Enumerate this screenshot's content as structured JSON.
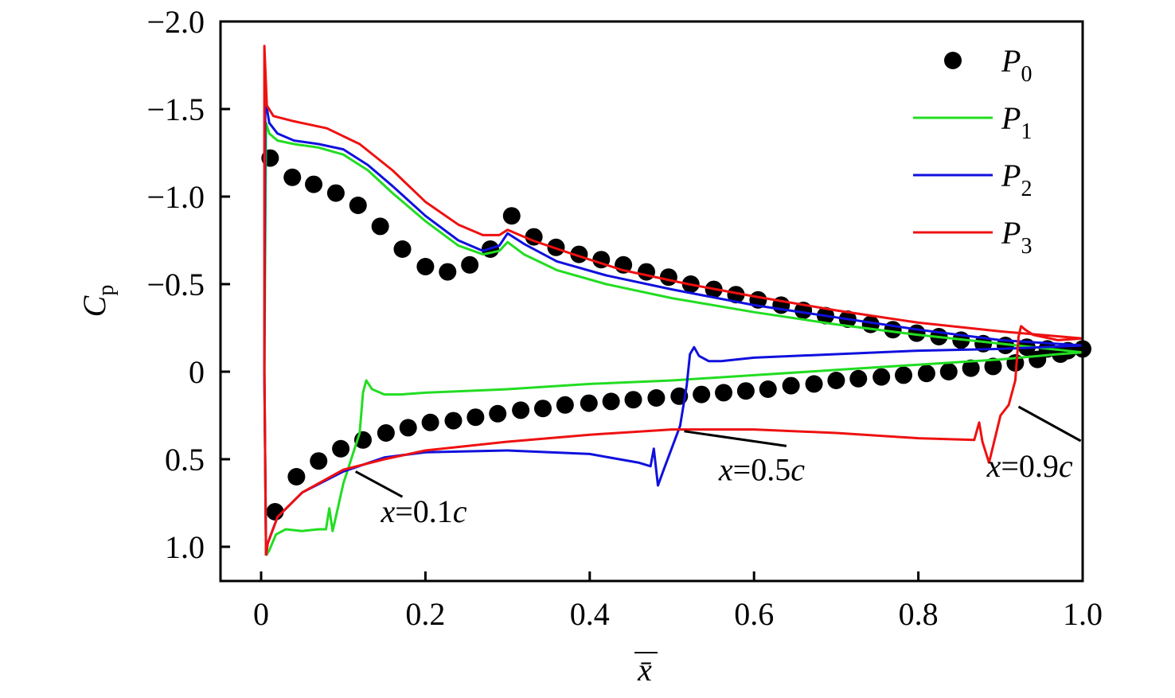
{
  "chart_data": {
    "type": "line",
    "title": "",
    "xlabel": "x̄",
    "ylabel": {
      "main": "C",
      "sub": "p"
    },
    "xlim": [
      0,
      1.0
    ],
    "ylim": [
      -2.0,
      1.2
    ],
    "y_inverted": true,
    "grid": false,
    "legend_position": "top-right",
    "x_ticks": [
      0,
      0.2,
      0.4,
      0.6,
      0.8,
      1.0
    ],
    "x_tick_labels": [
      "0",
      "0.2",
      "0.4",
      "0.6",
      "0.8",
      "1.0"
    ],
    "y_ticks": [
      -2.0,
      -1.5,
      -1.0,
      -0.5,
      0,
      0.5,
      1.0
    ],
    "y_tick_labels": [
      "−2.0",
      "−1.5",
      "−1.0",
      "−0.5",
      "0",
      "0.5",
      "1.0"
    ],
    "series": [
      {
        "name": "P0",
        "label_main": "P",
        "label_sub": "0",
        "type": "scatter",
        "color": "#000000",
        "x": [
          0.011,
          0.038,
          0.064,
          0.091,
          0.118,
          0.145,
          0.172,
          0.2,
          0.227,
          0.254,
          0.279,
          0.305,
          0.332,
          0.359,
          0.387,
          0.414,
          0.441,
          0.469,
          0.496,
          0.523,
          0.551,
          0.578,
          0.605,
          0.633,
          0.66,
          0.687,
          0.714,
          0.742,
          0.769,
          0.798,
          0.825,
          0.852,
          0.879,
          0.906,
          0.932,
          0.957,
          0.982,
          1.0,
          0.017,
          0.043,
          0.07,
          0.097,
          0.124,
          0.152,
          0.179,
          0.206,
          0.234,
          0.261,
          0.288,
          0.316,
          0.343,
          0.37,
          0.399,
          0.426,
          0.453,
          0.481,
          0.509,
          0.536,
          0.563,
          0.59,
          0.617,
          0.645,
          0.673,
          0.7,
          0.727,
          0.755,
          0.782,
          0.81,
          0.837,
          0.864,
          0.891,
          0.918,
          0.945,
          0.973
        ],
        "y": [
          -1.22,
          -1.11,
          -1.07,
          -1.02,
          -0.95,
          -0.83,
          -0.7,
          -0.6,
          -0.57,
          -0.61,
          -0.7,
          -0.89,
          -0.77,
          -0.71,
          -0.67,
          -0.64,
          -0.61,
          -0.57,
          -0.54,
          -0.5,
          -0.47,
          -0.44,
          -0.41,
          -0.38,
          -0.35,
          -0.32,
          -0.3,
          -0.27,
          -0.24,
          -0.22,
          -0.2,
          -0.18,
          -0.16,
          -0.15,
          -0.14,
          -0.13,
          -0.12,
          -0.13,
          0.8,
          0.6,
          0.51,
          0.44,
          0.39,
          0.35,
          0.32,
          0.29,
          0.28,
          0.26,
          0.24,
          0.22,
          0.21,
          0.19,
          0.18,
          0.17,
          0.16,
          0.15,
          0.14,
          0.13,
          0.12,
          0.11,
          0.1,
          0.08,
          0.07,
          0.05,
          0.04,
          0.03,
          0.02,
          0.01,
          0.0,
          -0.02,
          -0.03,
          -0.05,
          -0.07,
          -0.1
        ]
      },
      {
        "name": "P1",
        "label_main": "P",
        "label_sub": "1",
        "type": "line",
        "color": "#22dd22",
        "x": [
          0.006,
          0.004,
          0.006,
          0.01,
          0.02,
          0.04,
          0.07,
          0.1,
          0.13,
          0.16,
          0.2,
          0.24,
          0.27,
          0.29,
          0.3,
          0.32,
          0.36,
          0.42,
          0.5,
          0.6,
          0.7,
          0.8,
          0.9,
          1.0,
          0.97,
          0.9,
          0.8,
          0.7,
          0.6,
          0.5,
          0.4,
          0.3,
          0.2,
          0.17,
          0.15,
          0.135,
          0.128,
          0.124,
          0.12,
          0.1,
          0.09,
          0.087,
          0.083,
          0.079,
          0.07,
          0.05,
          0.03,
          0.018,
          0.01,
          0.006
        ],
        "y": [
          1.05,
          0.0,
          -1.42,
          -1.36,
          -1.32,
          -1.3,
          -1.28,
          -1.24,
          -1.15,
          -1.02,
          -0.86,
          -0.72,
          -0.67,
          -0.69,
          -0.74,
          -0.67,
          -0.58,
          -0.5,
          -0.42,
          -0.34,
          -0.27,
          -0.21,
          -0.16,
          -0.11,
          -0.1,
          -0.07,
          -0.04,
          -0.01,
          0.02,
          0.05,
          0.07,
          0.1,
          0.12,
          0.13,
          0.13,
          0.1,
          0.05,
          0.12,
          0.35,
          0.64,
          0.85,
          0.91,
          0.78,
          0.9,
          0.9,
          0.91,
          0.9,
          0.93,
          1.02,
          1.05
        ]
      },
      {
        "name": "P2",
        "label_main": "P",
        "label_sub": "2",
        "type": "line",
        "color": "#1010dd",
        "x": [
          0.006,
          0.004,
          0.005,
          0.01,
          0.02,
          0.04,
          0.07,
          0.1,
          0.13,
          0.16,
          0.2,
          0.24,
          0.27,
          0.29,
          0.3,
          0.32,
          0.36,
          0.42,
          0.5,
          0.6,
          0.7,
          0.8,
          0.9,
          1.0,
          0.95,
          0.9,
          0.8,
          0.7,
          0.6,
          0.56,
          0.545,
          0.533,
          0.527,
          0.522,
          0.518,
          0.51,
          0.49,
          0.483,
          0.478,
          0.474,
          0.46,
          0.4,
          0.3,
          0.2,
          0.15,
          0.1,
          0.05,
          0.02,
          0.008,
          0.006
        ],
        "y": [
          1.05,
          0.0,
          -1.56,
          -1.42,
          -1.36,
          -1.32,
          -1.3,
          -1.27,
          -1.18,
          -1.06,
          -0.89,
          -0.75,
          -0.69,
          -0.72,
          -0.79,
          -0.73,
          -0.63,
          -0.55,
          -0.47,
          -0.38,
          -0.31,
          -0.24,
          -0.18,
          -0.15,
          -0.14,
          -0.13,
          -0.12,
          -0.1,
          -0.08,
          -0.06,
          -0.06,
          -0.09,
          -0.14,
          -0.1,
          0.08,
          0.31,
          0.56,
          0.65,
          0.44,
          0.54,
          0.52,
          0.47,
          0.45,
          0.46,
          0.49,
          0.57,
          0.69,
          0.83,
          0.98,
          1.05
        ]
      },
      {
        "name": "P3",
        "label_main": "P",
        "label_sub": "3",
        "type": "line",
        "color": "#ee1111",
        "x": [
          0.006,
          0.004,
          0.004,
          0.007,
          0.015,
          0.04,
          0.08,
          0.12,
          0.16,
          0.2,
          0.24,
          0.27,
          0.29,
          0.3,
          0.33,
          0.38,
          0.44,
          0.52,
          0.6,
          0.7,
          0.8,
          0.9,
          1.0,
          0.97,
          0.94,
          0.93,
          0.925,
          0.922,
          0.918,
          0.91,
          0.9,
          0.886,
          0.878,
          0.874,
          0.868,
          0.8,
          0.7,
          0.6,
          0.5,
          0.4,
          0.3,
          0.2,
          0.15,
          0.1,
          0.05,
          0.02,
          0.008,
          0.006
        ],
        "y": [
          1.05,
          0.0,
          -1.86,
          -1.52,
          -1.46,
          -1.43,
          -1.39,
          -1.3,
          -1.15,
          -0.97,
          -0.84,
          -0.78,
          -0.78,
          -0.81,
          -0.75,
          -0.67,
          -0.58,
          -0.5,
          -0.43,
          -0.35,
          -0.28,
          -0.23,
          -0.19,
          -0.18,
          -0.21,
          -0.24,
          -0.26,
          -0.2,
          0.05,
          0.19,
          0.25,
          0.52,
          0.4,
          0.29,
          0.39,
          0.38,
          0.35,
          0.33,
          0.33,
          0.36,
          0.4,
          0.45,
          0.5,
          0.56,
          0.69,
          0.83,
          0.98,
          1.05
        ]
      }
    ],
    "annotations": [
      {
        "text_main": "x",
        "text_rest": "=0.1",
        "text_c": "c",
        "point": [
          0.115,
          0.57
        ],
        "text_at": [
          0.17,
          0.86
        ]
      },
      {
        "text_main": "x",
        "text_rest": "=0.5",
        "text_c": "c",
        "point": [
          0.515,
          0.34
        ],
        "text_at": [
          0.56,
          0.62
        ]
      },
      {
        "text_main": "x",
        "text_rest": "=0.9",
        "text_c": "c",
        "point": [
          0.922,
          0.2
        ],
        "text_at": [
          0.925,
          0.6
        ]
      }
    ]
  }
}
